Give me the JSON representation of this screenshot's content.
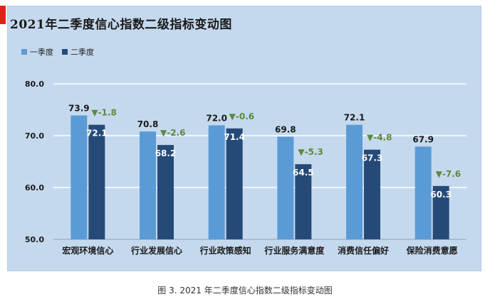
{
  "chart_data": {
    "type": "bar",
    "title": "2021年二季度信心指数二级指标变动图",
    "categories": [
      "宏观环境信心",
      "行业发展信心",
      "行业政策感知",
      "行业服务满意度",
      "消费信任偏好",
      "保险消费意愿"
    ],
    "series": [
      {
        "name": "一季度",
        "values": [
          73.9,
          70.8,
          72.0,
          69.8,
          72.1,
          67.9
        ],
        "labels": [
          "73.9",
          "70.8",
          "72.0",
          "69.8",
          "72.1",
          "67.9"
        ],
        "color": "#5b9bd5"
      },
      {
        "name": "二季度",
        "values": [
          72.1,
          68.2,
          71.4,
          64.5,
          67.3,
          60.3
        ],
        "labels": [
          "72.1",
          "68.2",
          "71.4",
          "64.5",
          "67.3",
          "60.3"
        ],
        "color": "#264a78"
      }
    ],
    "changes": [
      "-1.8",
      "-2.6",
      "-0.6",
      "-5.3",
      "-4.8",
      "-7.6"
    ],
    "change_marker": "▼",
    "change_color": "#5c8a3a",
    "ylim": [
      50,
      80
    ],
    "yticks": [
      50,
      60,
      70,
      80
    ],
    "ytick_labels": [
      "50.0",
      "60.0",
      "70.0",
      "80.0"
    ],
    "grid": true,
    "legend_position": "top-left",
    "xlabel": "",
    "ylabel": ""
  },
  "caption": "图 3. 2021 年二季度信心指数二级指标变动图"
}
